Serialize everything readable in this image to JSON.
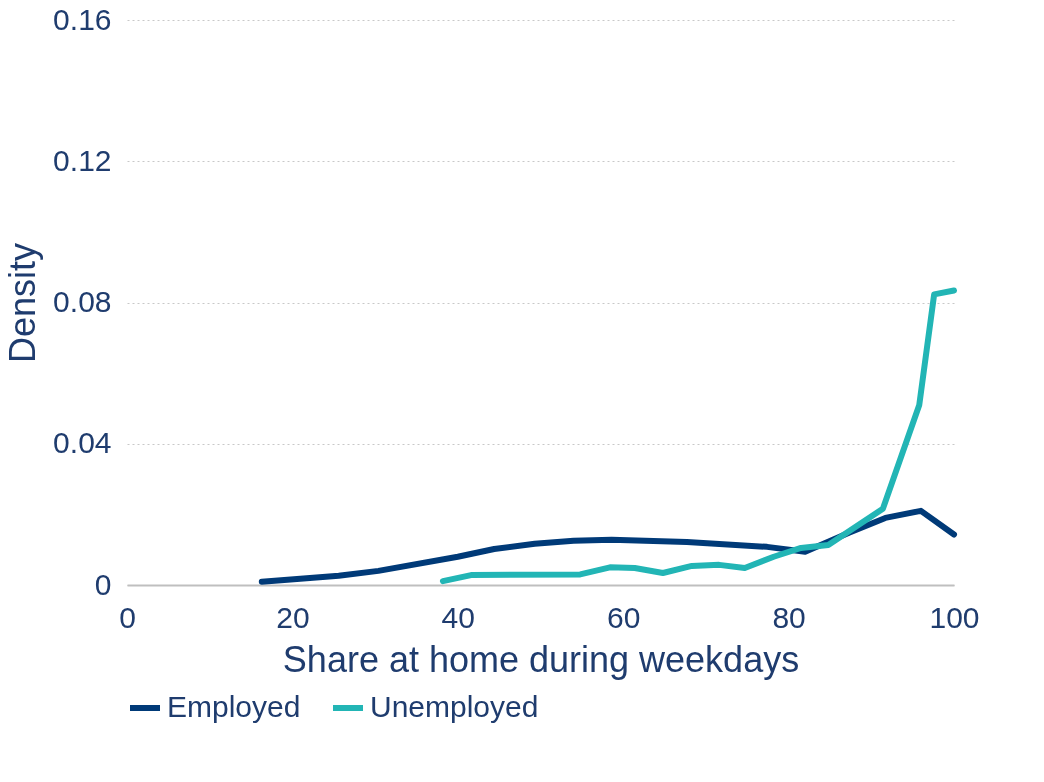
{
  "chart_data": {
    "type": "line",
    "xlabel": "Share at home during weekdays",
    "ylabel": "Density",
    "xlim": [
      0,
      100
    ],
    "xticks": [
      0,
      20,
      40,
      60,
      80,
      100
    ],
    "ylim": [
      0,
      0.16
    ],
    "yticks": [
      {
        "value": 0,
        "label": "0"
      },
      0.04,
      0.08,
      0.12,
      0.16
    ],
    "grid": "y",
    "legend": "bottom",
    "line_style": "solid",
    "marker": "none",
    "series": [
      {
        "name": "Employed",
        "color": "#003a78",
        "x": [
          16.3,
          25.6,
          30.4,
          40,
          44.4,
          49.3,
          54,
          58.6,
          67.7,
          77.4,
          82,
          87.3,
          91.7,
          96,
          100
        ],
        "values": [
          0.0009,
          0.0026,
          0.004,
          0.008,
          0.0102,
          0.0117,
          0.0125,
          0.0128,
          0.0122,
          0.0108,
          0.0094,
          0.0148,
          0.019,
          0.021,
          0.0143
        ]
      },
      {
        "name": "Unemployed",
        "color": "#22b5b5",
        "x": [
          38.2,
          41.6,
          54.8,
          58.4,
          61.4,
          64.8,
          68.3,
          71.6,
          74.7,
          78.2,
          81.5,
          84.8,
          87.8,
          91.4,
          95.8,
          97.6,
          100
        ],
        "values": [
          0.0011,
          0.0028,
          0.003,
          0.005,
          0.0048,
          0.0034,
          0.0054,
          0.0057,
          0.0048,
          0.008,
          0.0105,
          0.0113,
          0.016,
          0.0216,
          0.051,
          0.0823,
          0.0834
        ]
      }
    ]
  }
}
